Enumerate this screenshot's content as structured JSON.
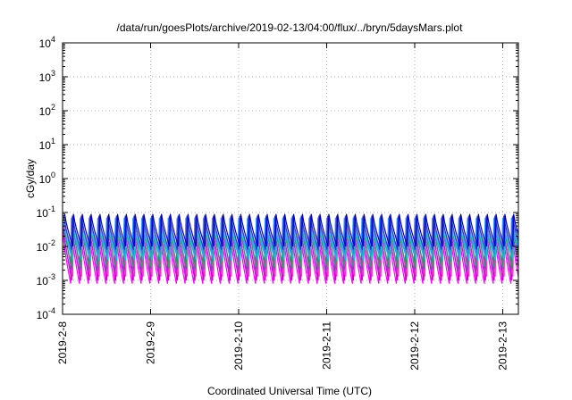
{
  "chart_data": {
    "type": "line",
    "title": "/data/run/goesPlots/archive/2019-02-13/04:00/flux/../bryn/5daysMars.plot",
    "xlabel": "Coordinated Universal Time (UTC)",
    "ylabel": "cGy/day",
    "x_tick_labels": [
      "2019-2-8",
      "2019-2-9",
      "2019-2-10",
      "2019-2-11",
      "2019-2-12",
      "2019-2-13"
    ],
    "y_scale": "log",
    "ylim": [
      0.0001,
      10000
    ],
    "y_tick_labels": [
      {
        "base": "10",
        "exp": "-4"
      },
      {
        "base": "10",
        "exp": "-3"
      },
      {
        "base": "10",
        "exp": "-2"
      },
      {
        "base": "10",
        "exp": "-1"
      },
      {
        "base": "10",
        "exp": "0"
      },
      {
        "base": "10",
        "exp": "1"
      },
      {
        "base": "10",
        "exp": "2"
      },
      {
        "base": "10",
        "exp": "3"
      },
      {
        "base": "10",
        "exp": "4"
      }
    ],
    "grid": true,
    "sawtooth_period_days": 0.1,
    "series": [
      {
        "color": "#ff00ff",
        "peak": 0.03,
        "trough": 0.0008
      },
      {
        "color": "#cc00cc",
        "peak": 0.035,
        "trough": 0.001
      },
      {
        "color": "#ff33cc",
        "peak": 0.04,
        "trough": 0.0013
      },
      {
        "color": "#9933cc",
        "peak": 0.045,
        "trough": 0.0018
      },
      {
        "color": "#339966",
        "peak": 0.05,
        "trough": 0.0025
      },
      {
        "color": "#00cccc",
        "peak": 0.06,
        "trough": 0.004
      },
      {
        "color": "#3399ff",
        "peak": 0.07,
        "trough": 0.006
      },
      {
        "color": "#3333cc",
        "peak": 0.08,
        "trough": 0.008
      },
      {
        "color": "#0000cc",
        "peak": 0.09,
        "trough": 0.01
      }
    ]
  }
}
